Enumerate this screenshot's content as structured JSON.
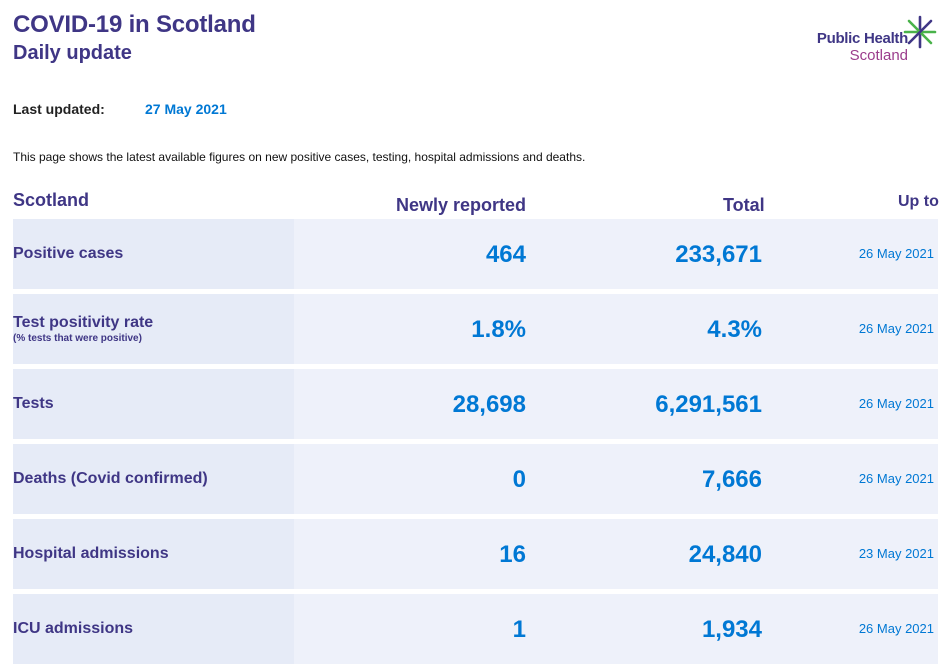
{
  "header": {
    "title": "COVID-19 in Scotland",
    "subtitle": "Daily update",
    "logo_line1": "Public Health",
    "logo_line2": "Scotland"
  },
  "last_updated": {
    "label": "Last updated:",
    "value": "27 May 2021"
  },
  "intro": "This page shows the latest available figures on new positive cases, testing, hospital admissions and deaths.",
  "table": {
    "headers": {
      "region": "Scotland",
      "new": "Newly reported",
      "total": "Total",
      "up_to": "Up to"
    },
    "rows": [
      {
        "name": "Positive cases",
        "sub": "",
        "new": "464",
        "total": "233,671",
        "date": "26 May 2021"
      },
      {
        "name": "Test positivity rate",
        "sub": "(% tests that were positive)",
        "new": "1.8%",
        "total": "4.3%",
        "date": "26 May 2021"
      },
      {
        "name": "Tests",
        "sub": "",
        "new": "28,698",
        "total": "6,291,561",
        "date": "26 May 2021"
      },
      {
        "name": "Deaths (Covid confirmed)",
        "sub": "",
        "new": "0",
        "total": "7,666",
        "date": "26 May 2021"
      },
      {
        "name": "Hospital admissions",
        "sub": "",
        "new": "16",
        "total": "24,840",
        "date": "23 May 2021"
      },
      {
        "name": "ICU admissions",
        "sub": "",
        "new": "1",
        "total": "1,934",
        "date": "26 May 2021"
      }
    ]
  },
  "colors": {
    "brand_purple": "#3f3685",
    "accent_blue": "#0078d4",
    "logo_magenta": "#9b3c8c",
    "logo_green": "#49b24a"
  }
}
